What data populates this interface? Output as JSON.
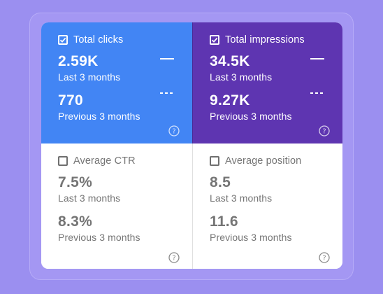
{
  "metrics": [
    {
      "title": "Total clicks",
      "checked": true,
      "current_value": "2.59K",
      "current_label": "Last 3 months",
      "previous_value": "770",
      "previous_label": "Previous 3 months"
    },
    {
      "title": "Total impressions",
      "checked": true,
      "current_value": "34.5K",
      "current_label": "Last 3 months",
      "previous_value": "9.27K",
      "previous_label": "Previous 3 months"
    },
    {
      "title": "Average CTR",
      "checked": false,
      "current_value": "7.5%",
      "current_label": "Last 3 months",
      "previous_value": "8.3%",
      "previous_label": "Previous 3 months"
    },
    {
      "title": "Average position",
      "checked": false,
      "current_value": "8.5",
      "current_label": "Last 3 months",
      "previous_value": "11.6",
      "previous_label": "Previous 3 months"
    }
  ],
  "colors": {
    "clicks": "#4285f4",
    "impressions": "#5e35b1",
    "background": "#9b8ff0"
  },
  "icons": {
    "checkbox_checked": "checkbox-checked-icon",
    "checkbox_unchecked": "checkbox-unchecked-icon",
    "help": "help-circle-icon",
    "legend_current": "solid-line-legend",
    "legend_previous": "dashed-line-legend"
  }
}
